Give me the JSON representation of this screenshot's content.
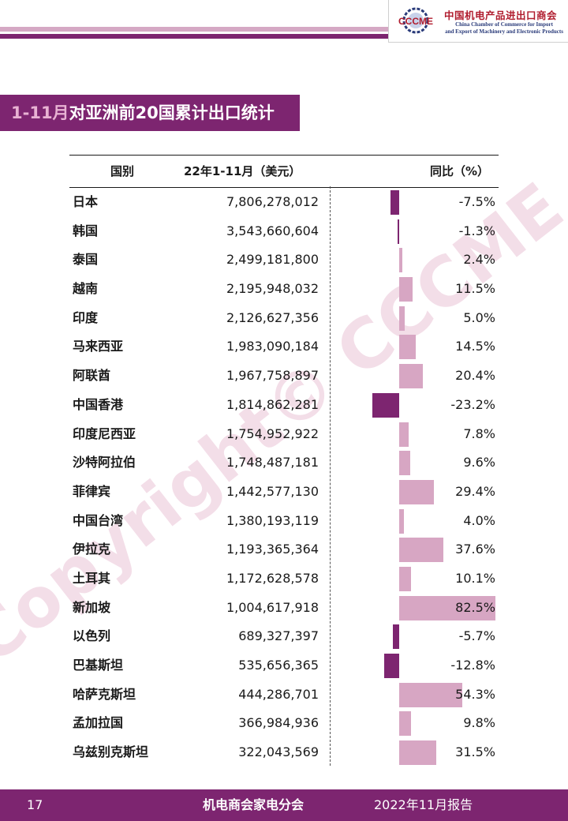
{
  "header": {
    "org_name_cn": "中国机电产品进出口商会",
    "org_name_en_1": "China Chamber of Commerce for Import",
    "org_name_en_2": "and Export of Machinery and Electronic Products",
    "logo_text": "CCCME"
  },
  "section_title": {
    "accent": "1-11月",
    "rest": "对亚洲前20国累计出口统计"
  },
  "watermark": "Copyright© CCCME",
  "table": {
    "columns": [
      "国别",
      "22年1-11月（美元）",
      "同比（%）"
    ],
    "rows": [
      {
        "country": "日本",
        "value": "7,806,278,012",
        "yoy": -7.5,
        "yoy_label": "-7.5%"
      },
      {
        "country": "韩国",
        "value": "3,543,660,604",
        "yoy": -1.3,
        "yoy_label": "-1.3%"
      },
      {
        "country": "泰国",
        "value": "2,499,181,800",
        "yoy": 2.4,
        "yoy_label": "2.4%"
      },
      {
        "country": "越南",
        "value": "2,195,948,032",
        "yoy": 11.5,
        "yoy_label": "11.5%"
      },
      {
        "country": "印度",
        "value": "2,126,627,356",
        "yoy": 5.0,
        "yoy_label": "5.0%"
      },
      {
        "country": "马来西亚",
        "value": "1,983,090,184",
        "yoy": 14.5,
        "yoy_label": "14.5%"
      },
      {
        "country": "阿联酋",
        "value": "1,967,758,897",
        "yoy": 20.4,
        "yoy_label": "20.4%"
      },
      {
        "country": "中国香港",
        "value": "1,814,862,281",
        "yoy": -23.2,
        "yoy_label": "-23.2%"
      },
      {
        "country": "印度尼西亚",
        "value": "1,754,952,922",
        "yoy": 7.8,
        "yoy_label": "7.8%"
      },
      {
        "country": "沙特阿拉伯",
        "value": "1,748,487,181",
        "yoy": 9.6,
        "yoy_label": "9.6%"
      },
      {
        "country": "菲律宾",
        "value": "1,442,577,130",
        "yoy": 29.4,
        "yoy_label": "29.4%"
      },
      {
        "country": "中国台湾",
        "value": "1,380,193,119",
        "yoy": 4.0,
        "yoy_label": "4.0%"
      },
      {
        "country": "伊拉克",
        "value": "1,193,365,364",
        "yoy": 37.6,
        "yoy_label": "37.6%"
      },
      {
        "country": "土耳其",
        "value": "1,172,628,578",
        "yoy": 10.1,
        "yoy_label": "10.1%"
      },
      {
        "country": "新加坡",
        "value": "1,004,617,918",
        "yoy": 82.5,
        "yoy_label": "82.5%"
      },
      {
        "country": "以色列",
        "value": "689,327,397",
        "yoy": -5.7,
        "yoy_label": "-5.7%"
      },
      {
        "country": "巴基斯坦",
        "value": "535,656,365",
        "yoy": -12.8,
        "yoy_label": "-12.8%"
      },
      {
        "country": "哈萨克斯坦",
        "value": "444,286,701",
        "yoy": 54.3,
        "yoy_label": "54.3%"
      },
      {
        "country": "孟加拉国",
        "value": "366,984,936",
        "yoy": 9.8,
        "yoy_label": "9.8%"
      },
      {
        "country": "乌兹别克斯坦",
        "value": "322,043,569",
        "yoy": 31.5,
        "yoy_label": "31.5%"
      }
    ]
  },
  "footer": {
    "page": "17",
    "center": "机电商会家电分会",
    "right": "2022年11月报告"
  },
  "colors": {
    "brand": "#7d2570",
    "bar_positive": "#d7a6c3",
    "bar_negative": "#7d2570",
    "accent_pink": "#d5a8c4"
  }
}
